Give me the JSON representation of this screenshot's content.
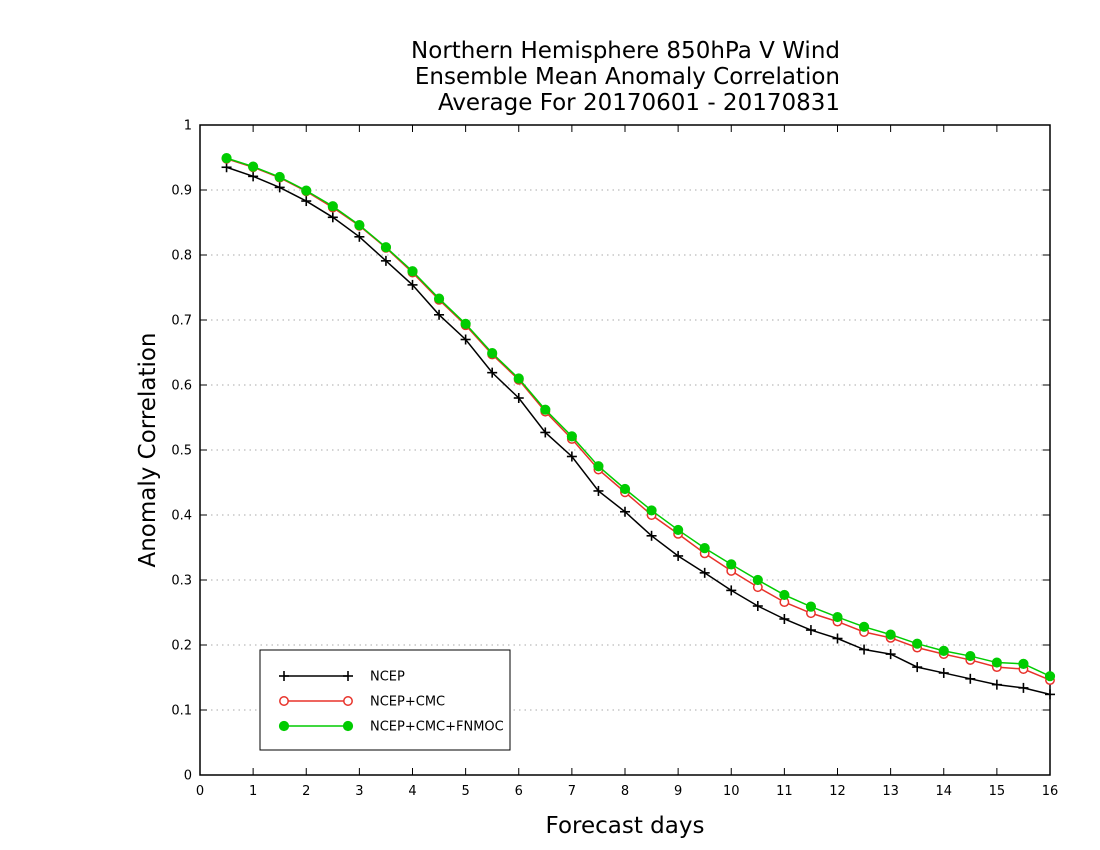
{
  "chart_data": {
    "type": "line",
    "title_lines": [
      "Northern Hemisphere 850hPa V Wind",
      "Ensemble Mean Anomaly Correlation",
      "Average For 20170601 - 20170831"
    ],
    "xlabel": "Forecast days",
    "ylabel": "Anomaly Correlation",
    "xlim": [
      0,
      16
    ],
    "ylim": [
      0,
      1
    ],
    "x_ticks": [
      "0",
      "1",
      "2",
      "3",
      "4",
      "5",
      "6",
      "7",
      "8",
      "9",
      "10",
      "11",
      "12",
      "13",
      "14",
      "15",
      "16"
    ],
    "y_ticks": [
      "0",
      "0.1",
      "0.2",
      "0.3",
      "0.4",
      "0.5",
      "0.6",
      "0.7",
      "0.8",
      "0.9",
      "1"
    ],
    "grid": "horizontal dotted",
    "legend_position": "bottom-left",
    "x": [
      0.5,
      1,
      1.5,
      2,
      2.5,
      3,
      3.5,
      4,
      4.5,
      5,
      5.5,
      6,
      6.5,
      7,
      7.5,
      8,
      8.5,
      9,
      9.5,
      10,
      10.5,
      11,
      11.5,
      12,
      12.5,
      13,
      13.5,
      14,
      14.5,
      15,
      15.5,
      16
    ],
    "series": [
      {
        "name": "NCEP",
        "color": "#000000",
        "marker": "plus",
        "values": [
          0.935,
          0.921,
          0.904,
          0.883,
          0.858,
          0.828,
          0.791,
          0.754,
          0.708,
          0.67,
          0.619,
          0.58,
          0.527,
          0.49,
          0.437,
          0.405,
          0.368,
          0.337,
          0.311,
          0.284,
          0.26,
          0.24,
          0.223,
          0.21,
          0.193,
          0.186,
          0.166,
          0.157,
          0.148,
          0.139,
          0.134,
          0.124
        ]
      },
      {
        "name": "NCEP+CMC",
        "color": "#e8322a",
        "marker": "open-circle",
        "values": [
          0.948,
          0.935,
          0.919,
          0.898,
          0.873,
          0.845,
          0.811,
          0.773,
          0.731,
          0.692,
          0.647,
          0.608,
          0.559,
          0.517,
          0.47,
          0.435,
          0.4,
          0.371,
          0.341,
          0.314,
          0.289,
          0.266,
          0.249,
          0.236,
          0.22,
          0.211,
          0.196,
          0.186,
          0.177,
          0.166,
          0.163,
          0.146
        ]
      },
      {
        "name": "NCEP+CMC+FNMOC",
        "color": "#00cc00",
        "marker": "filled-circle",
        "values": [
          0.949,
          0.936,
          0.92,
          0.899,
          0.875,
          0.846,
          0.812,
          0.775,
          0.733,
          0.694,
          0.649,
          0.61,
          0.562,
          0.521,
          0.475,
          0.44,
          0.407,
          0.377,
          0.349,
          0.324,
          0.3,
          0.277,
          0.259,
          0.243,
          0.228,
          0.216,
          0.202,
          0.191,
          0.183,
          0.173,
          0.171,
          0.152
        ]
      }
    ]
  }
}
